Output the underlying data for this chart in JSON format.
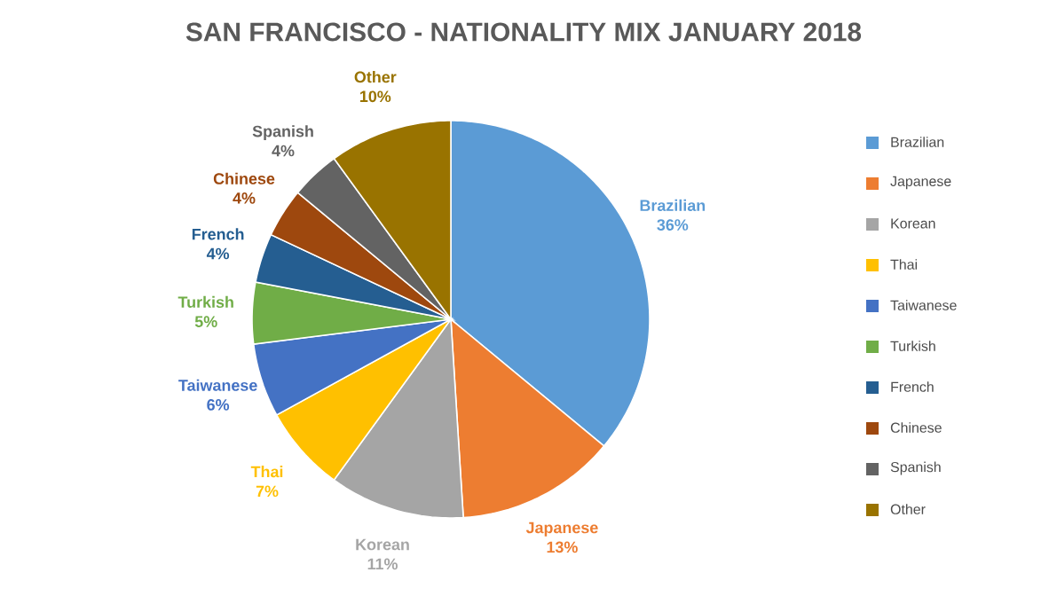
{
  "chart_data": {
    "type": "pie",
    "title": "SAN FRANCISCO - NATIONALITY MIX JANUARY 2018",
    "categories": [
      "Brazilian",
      "Japanese",
      "Korean",
      "Thai",
      "Taiwanese",
      "Turkish",
      "French",
      "Chinese",
      "Spanish",
      "Other"
    ],
    "values": [
      36,
      13,
      11,
      7,
      6,
      5,
      4,
      4,
      4,
      10
    ],
    "colors": [
      "#5b9bd5",
      "#ed7d31",
      "#a5a5a5",
      "#ffc000",
      "#4472c4",
      "#70ad47",
      "#255e91",
      "#9e480e",
      "#636363",
      "#997300"
    ],
    "value_labels": [
      "36%",
      "13%",
      "11%",
      "7%",
      "6%",
      "5%",
      "4%",
      "4%",
      "4%",
      "10%"
    ],
    "legend": "right"
  }
}
